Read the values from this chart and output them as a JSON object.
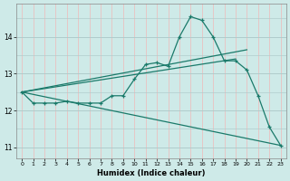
{
  "xlabel": "Humidex (Indice chaleur)",
  "color": "#1a7a6a",
  "bg_color": "#ceeae8",
  "grid_major_color": "#b0cccc",
  "grid_minor_color": "#f0b8b8",
  "ylim": [
    10.7,
    14.9
  ],
  "xlim": [
    -0.5,
    23.5
  ],
  "yticks": [
    11,
    12,
    13,
    14
  ],
  "xticks": [
    0,
    1,
    2,
    3,
    4,
    5,
    6,
    7,
    8,
    9,
    10,
    11,
    12,
    13,
    14,
    15,
    16,
    17,
    18,
    19,
    20,
    21,
    22,
    23
  ],
  "main_x": [
    0,
    1,
    2,
    3,
    4,
    5,
    6,
    7,
    8,
    9,
    10,
    11,
    12,
    13,
    14,
    15,
    16,
    17,
    18,
    19,
    20,
    21,
    22,
    23
  ],
  "main_y": [
    12.5,
    12.2,
    12.2,
    12.2,
    12.25,
    12.2,
    12.2,
    12.2,
    12.4,
    12.4,
    12.85,
    13.25,
    13.3,
    13.2,
    14.0,
    14.55,
    14.45,
    14.0,
    13.35,
    13.35,
    13.1,
    12.4,
    11.55,
    11.05
  ],
  "upper_line_x": [
    0,
    20
  ],
  "upper_line_y": [
    12.5,
    13.65
  ],
  "lower_line_x": [
    0,
    23
  ],
  "lower_line_y": [
    12.5,
    11.05
  ],
  "mid_line_x": [
    0,
    19
  ],
  "mid_line_y": [
    12.5,
    13.4
  ]
}
